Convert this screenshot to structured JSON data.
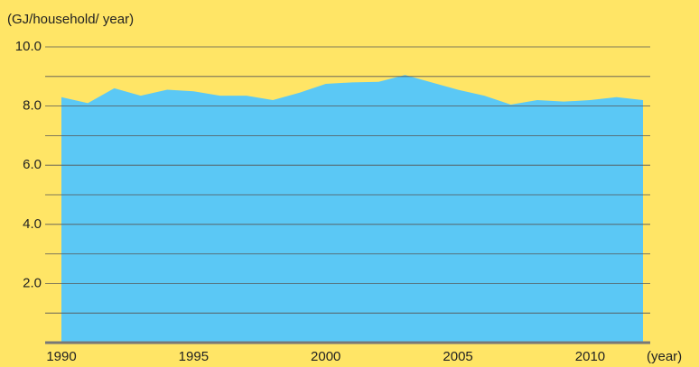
{
  "chart_data": {
    "type": "area",
    "y_label": "(GJ/household/ year)",
    "x_label": "(year)",
    "x": [
      1990,
      1991,
      1992,
      1993,
      1994,
      1995,
      1996,
      1997,
      1998,
      1999,
      2000,
      2001,
      2002,
      2003,
      2004,
      2005,
      2006,
      2007,
      2008,
      2009,
      2010,
      2011,
      2012
    ],
    "values": [
      8.3,
      8.1,
      8.6,
      8.35,
      8.55,
      8.5,
      8.35,
      8.35,
      8.2,
      8.45,
      8.75,
      8.8,
      8.82,
      9.05,
      8.8,
      8.55,
      8.35,
      8.05,
      8.2,
      8.15,
      8.2,
      8.3,
      8.2
    ],
    "color": "#5bc8f5",
    "background": "#ffe566",
    "xlim": [
      1990,
      2012
    ],
    "xticks": [
      1990,
      1995,
      2000,
      2005,
      2010
    ],
    "ylim": [
      0,
      10
    ],
    "yticks": [
      {
        "value": 2,
        "label": "2.0"
      },
      {
        "value": 4,
        "label": "4.0"
      },
      {
        "value": 6,
        "label": "6.0"
      },
      {
        "value": 8,
        "label": "8.0"
      },
      {
        "value": 10,
        "label": "10.0"
      }
    ],
    "yminor": [
      1,
      3,
      5,
      7,
      9
    ],
    "grid": true
  }
}
